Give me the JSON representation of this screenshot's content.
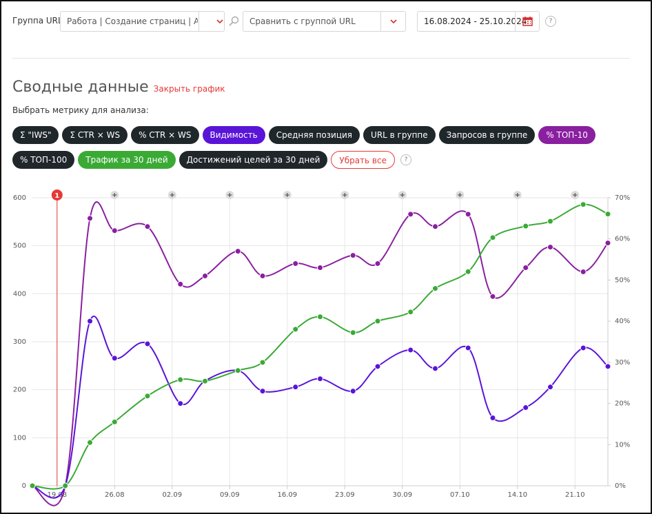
{
  "header": {
    "group_label": "Группа URL:",
    "group_value": "Работа | Создание страниц | А...",
    "compare_placeholder": "Сравнить с группой URL",
    "date_range": "16.08.2024 - 25.10.2024",
    "help": "?"
  },
  "section": {
    "title": "Сводные данные",
    "close_link": "Закрыть график",
    "prompt": "Выбрать метрику для анализа:",
    "help": "?"
  },
  "metrics": [
    {
      "label": "Σ \"IWS\"",
      "color": "#20272b"
    },
    {
      "label": "Σ CTR × WS",
      "color": "#20272b"
    },
    {
      "label": "% CTR × WS",
      "color": "#20272b"
    },
    {
      "label": "Видимость",
      "color": "#5a14d8"
    },
    {
      "label": "Средняя позиция",
      "color": "#20272b"
    },
    {
      "label": "URL в группе",
      "color": "#20272b"
    },
    {
      "label": "Запросов в группе",
      "color": "#20272b"
    },
    {
      "label": "% ТОП-10",
      "color": "#8a1fa0"
    },
    {
      "label": "% ТОП-100",
      "color": "#20272b"
    },
    {
      "label": "Трафик за 30 дней",
      "color": "#3aaa35"
    },
    {
      "label": "Достижений целей за 30 дней",
      "color": "#20272b"
    }
  ],
  "clear_button": {
    "label": "Убрать все",
    "color": "#e53935"
  },
  "chart_data": {
    "type": "line",
    "x": [
      0,
      4,
      7,
      10,
      14,
      18,
      21,
      25,
      28,
      32,
      35,
      39,
      42,
      46,
      49,
      53,
      56,
      60,
      63,
      67,
      70
    ],
    "xlim": [
      0,
      70
    ],
    "xticks": [
      {
        "value": 3,
        "label": "19.08"
      },
      {
        "value": 10,
        "label": "26.08"
      },
      {
        "value": 17,
        "label": "02.09"
      },
      {
        "value": 24,
        "label": "09.09"
      },
      {
        "value": 31,
        "label": "16.09"
      },
      {
        "value": 38,
        "label": "23.09"
      },
      {
        "value": 45,
        "label": "30.09"
      },
      {
        "value": 52,
        "label": "07.10"
      },
      {
        "value": 59,
        "label": "14.10"
      },
      {
        "value": 66,
        "label": "21.10"
      }
    ],
    "ylim": [
      0,
      600
    ],
    "yticks": [
      0,
      100,
      200,
      300,
      400,
      500,
      600
    ],
    "y2lim": [
      0,
      70
    ],
    "y2ticks": [
      {
        "value": 0,
        "label": "0%"
      },
      {
        "value": 10,
        "label": "10%"
      },
      {
        "value": 20,
        "label": "20%"
      },
      {
        "value": 30,
        "label": "30%"
      },
      {
        "value": 40,
        "label": "40%"
      },
      {
        "value": 50,
        "label": "50%"
      },
      {
        "value": 60,
        "label": "60%"
      },
      {
        "value": 70,
        "label": "70%"
      }
    ],
    "grid": true,
    "annotations": [
      {
        "x": 3,
        "label": "1",
        "color": "#e53935"
      }
    ],
    "series": [
      {
        "name": "% ТОП-10",
        "color": "#8a1fa0",
        "axis": "y2",
        "values": [
          0,
          0,
          65,
          62,
          63,
          49,
          51,
          57,
          51,
          54,
          53,
          56,
          54,
          66,
          63,
          66,
          46,
          53,
          58,
          52,
          59
        ]
      },
      {
        "name": "Видимость",
        "color": "#5a14d8",
        "axis": "y2",
        "values": [
          0,
          0,
          40,
          31,
          34.5,
          20,
          25.5,
          28,
          23,
          24,
          26,
          23,
          29,
          33,
          28.5,
          33.5,
          16.5,
          19,
          24,
          33.5,
          29
        ]
      },
      {
        "name": "Трафик за 30 дней",
        "color": "#3aaa35",
        "values": [
          0,
          0,
          90,
          133,
          187,
          221,
          218,
          240,
          257,
          326,
          352,
          319,
          343,
          362,
          411,
          446,
          517,
          541,
          551,
          586,
          566
        ]
      }
    ]
  }
}
